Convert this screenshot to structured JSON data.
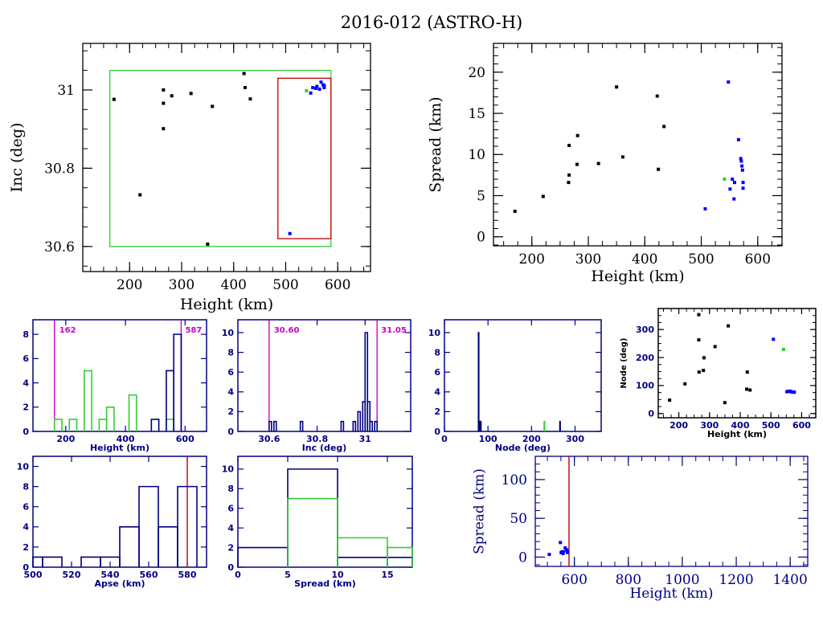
{
  "page": {
    "title": "2016-012 (ASTRO-H)"
  },
  "colors": {
    "black": "#000000",
    "navy": "#000080",
    "blue": "#0000ff",
    "green": "#33cc33",
    "red": "#c00000",
    "magenta": "#cc00cc"
  },
  "chart_data": [
    {
      "id": "inc-vs-height",
      "type": "scatter",
      "title": "",
      "xlabel": "Height (km)",
      "ylabel": "Inc (deg)",
      "xlim": [
        110,
        663
      ],
      "ylim": [
        30.536,
        31.119
      ],
      "xticks": [
        200,
        300,
        400,
        500,
        600
      ],
      "xtick_labels": [
        "200",
        "300",
        "400",
        "500",
        "600"
      ],
      "yticks": [
        30.6,
        30.8,
        31
      ],
      "ytick_labels": [
        "30.6",
        "30.8",
        "31"
      ],
      "xminor": 25,
      "yminor": 0.05,
      "boxes": [
        {
          "name": "green-box",
          "color": "green",
          "x": [
            162,
            587
          ],
          "y": [
            30.6,
            31.05
          ]
        },
        {
          "name": "red-box",
          "color": "red",
          "x": [
            485,
            587
          ],
          "y": [
            30.62,
            31.03
          ]
        }
      ],
      "series": [
        {
          "name": "debris-black",
          "color": "black",
          "points": [
            [
              170,
              30.976
            ],
            [
              265,
              31.0
            ],
            [
              265,
              30.966
            ],
            [
              265,
              30.901
            ],
            [
              281,
              30.985
            ],
            [
              318,
              30.991
            ],
            [
              359,
              30.958
            ],
            [
              420,
              31.042
            ],
            [
              422,
              31.006
            ],
            [
              432,
              30.977
            ],
            [
              220,
              30.732
            ],
            [
              350,
              30.606
            ]
          ]
        },
        {
          "name": "debris-blue",
          "color": "blue",
          "points": [
            [
              548,
              30.992
            ],
            [
              552,
              31.006
            ],
            [
              558,
              31.004
            ],
            [
              560,
              31.009
            ],
            [
              565,
              31.002
            ],
            [
              568,
              31.02
            ],
            [
              572,
              31.013
            ],
            [
              574,
              31.006
            ],
            [
              574,
              31.011
            ],
            [
              508,
              30.633
            ]
          ]
        },
        {
          "name": "parent-green",
          "color": "green",
          "points": [
            [
              540,
              30.998
            ]
          ]
        }
      ]
    },
    {
      "id": "spread-vs-height",
      "type": "scatter",
      "xlabel": "Height (km)",
      "ylabel": "Spread (km)",
      "xlim": [
        132,
        643
      ],
      "ylim": [
        -1.1,
        23.5
      ],
      "xticks": [
        200,
        300,
        400,
        500,
        600
      ],
      "xtick_labels": [
        "200",
        "300",
        "400",
        "500",
        "600"
      ],
      "yticks": [
        0,
        5,
        10,
        15,
        20
      ],
      "ytick_labels": [
        "0",
        "5",
        "10",
        "15",
        "20"
      ],
      "xminor": 25,
      "yminor": 1,
      "series": [
        {
          "name": "debris-black",
          "color": "black",
          "points": [
            [
              170,
              3.1
            ],
            [
              220,
              4.9
            ],
            [
              265,
              6.6
            ],
            [
              266,
              7.5
            ],
            [
              266,
              11.1
            ],
            [
              280,
              8.8
            ],
            [
              281,
              12.3
            ],
            [
              318,
              8.9
            ],
            [
              350,
              18.2
            ],
            [
              361,
              9.7
            ],
            [
              422,
              17.1
            ],
            [
              424,
              8.2
            ],
            [
              434,
              13.4
            ]
          ]
        },
        {
          "name": "debris-blue",
          "color": "blue",
          "points": [
            [
              507,
              3.4
            ],
            [
              548,
              18.8
            ],
            [
              551,
              5.8
            ],
            [
              555,
              7.0
            ],
            [
              558,
              4.6
            ],
            [
              559,
              6.6
            ],
            [
              566,
              11.8
            ],
            [
              570,
              9.5
            ],
            [
              571,
              9.2
            ],
            [
              572,
              8.6
            ],
            [
              573,
              8.1
            ],
            [
              574,
              6.6
            ],
            [
              574,
              5.9
            ]
          ]
        },
        {
          "name": "parent-green",
          "color": "green",
          "points": [
            [
              541,
              7.0
            ]
          ]
        }
      ]
    },
    {
      "id": "height-histogram",
      "type": "bar",
      "xlabel": "Height (km)",
      "ylabel": "",
      "xlim": [
        90,
        672
      ],
      "ylim": [
        0,
        9.2
      ],
      "xticks": [
        200,
        400,
        600
      ],
      "xtick_labels": [
        "200",
        "400",
        "600"
      ],
      "yticks": [
        0,
        2,
        4,
        6,
        8
      ],
      "ytick_labels": [
        "0",
        "2",
        "4",
        "6",
        "8"
      ],
      "markers": [
        {
          "value": 162,
          "label": "162",
          "color": "magenta"
        },
        {
          "value": 587,
          "label": "587",
          "color": "magenta"
        }
      ],
      "bin_width": 25,
      "series": [
        {
          "name": "green-parent-ops",
          "color": "green",
          "bins": [
            [
              162,
              1
            ],
            [
              187,
              0
            ],
            [
              212,
              1
            ],
            [
              237,
              0
            ],
            [
              262,
              5
            ],
            [
              287,
              0
            ],
            [
              312,
              1
            ],
            [
              337,
              2
            ],
            [
              362,
              0
            ],
            [
              387,
              0
            ],
            [
              412,
              3
            ],
            [
              437,
              0
            ],
            [
              462,
              0
            ],
            [
              487,
              0
            ],
            [
              537,
              1
            ]
          ]
        },
        {
          "name": "navy-debris",
          "color": "navy",
          "bins": [
            [
              487,
              1
            ],
            [
              537,
              5
            ],
            [
              562,
              8
            ]
          ]
        }
      ]
    },
    {
      "id": "inc-histogram",
      "type": "bar",
      "xlabel": "Inc (deg)",
      "ylabel": "",
      "xlim": [
        30.47,
        31.19
      ],
      "ylim": [
        0,
        11.3
      ],
      "xticks": [
        30.6,
        30.8,
        31
      ],
      "xtick_labels": [
        "30.6",
        "30.8",
        "31"
      ],
      "yticks": [
        0,
        2,
        4,
        6,
        8,
        10
      ],
      "ytick_labels": [
        "0",
        "2",
        "4",
        "6",
        "8",
        "10"
      ],
      "markers": [
        {
          "value": 30.6,
          "label": "30.60",
          "color": "magenta"
        },
        {
          "value": 31.05,
          "label": "31.05",
          "color": "magenta"
        }
      ],
      "bin_width": 0.01,
      "series": [
        {
          "name": "navy-inc",
          "color": "navy",
          "bins": [
            [
              30.6,
              1
            ],
            [
              30.62,
              1
            ],
            [
              30.73,
              1
            ],
            [
              30.9,
              1
            ],
            [
              30.95,
              1
            ],
            [
              30.97,
              2
            ],
            [
              30.99,
              3
            ],
            [
              31.0,
              10
            ],
            [
              31.01,
              3
            ],
            [
              31.02,
              1
            ],
            [
              31.04,
              1
            ]
          ]
        }
      ]
    },
    {
      "id": "node-histogram",
      "type": "bar",
      "xlabel": "Node (deg)",
      "ylabel": "",
      "xlim": [
        0,
        360
      ],
      "ylim": [
        0,
        11.3
      ],
      "xticks": [
        0,
        100,
        200,
        300
      ],
      "xtick_labels": [
        "0",
        "100",
        "200",
        "300"
      ],
      "yticks": [
        0,
        2,
        4,
        6,
        8,
        10
      ],
      "ytick_labels": [
        "0",
        "2",
        "4",
        "6",
        "8",
        "10"
      ],
      "bin_width": 1,
      "series": [
        {
          "name": "navy-node",
          "color": "navy",
          "bins": [
            [
              78,
              10
            ],
            [
              80,
              1
            ],
            [
              81,
              1
            ],
            [
              82,
              1
            ],
            [
              83,
              1
            ],
            [
              265,
              1
            ]
          ]
        },
        {
          "name": "green-node",
          "color": "green",
          "bins": [
            [
              229,
              1
            ]
          ]
        }
      ]
    },
    {
      "id": "node-vs-height",
      "type": "scatter",
      "xlabel": "Height (km)",
      "ylabel": "Node (deg)",
      "xlim": [
        133,
        646
      ],
      "ylim": [
        -15,
        375
      ],
      "xticks": [
        200,
        300,
        400,
        500,
        600
      ],
      "xtick_labels": [
        "200",
        "300",
        "400",
        "500",
        "600"
      ],
      "yticks": [
        0,
        100,
        200,
        300
      ],
      "ytick_labels": [
        "0",
        "100",
        "200",
        "300"
      ],
      "xminor": 25,
      "yminor": 25,
      "series": [
        {
          "name": "debris-black",
          "color": "black",
          "points": [
            [
              170,
              48
            ],
            [
              220,
              106
            ],
            [
              265,
              353
            ],
            [
              265,
              263
            ],
            [
              266,
              148
            ],
            [
              280,
              154
            ],
            [
              282,
              199
            ],
            [
              318,
              239
            ],
            [
              350,
              39
            ],
            [
              361,
              313
            ],
            [
              421,
              87
            ],
            [
              423,
              148
            ],
            [
              432,
              84
            ]
          ]
        },
        {
          "name": "debris-blue",
          "color": "blue",
          "points": [
            [
              508,
              265
            ],
            [
              552,
              78
            ],
            [
              556,
              79
            ],
            [
              560,
              80
            ],
            [
              564,
              79
            ],
            [
              568,
              77
            ],
            [
              572,
              77
            ],
            [
              576,
              76
            ]
          ]
        },
        {
          "name": "parent-green",
          "color": "green",
          "points": [
            [
              541,
              229
            ]
          ]
        }
      ]
    },
    {
      "id": "apse-histogram",
      "type": "bar",
      "xlabel": "Apse (km)",
      "ylabel": "",
      "xlim": [
        500,
        590
      ],
      "ylim": [
        0,
        11
      ],
      "xticks": [
        500,
        520,
        540,
        560,
        580
      ],
      "xtick_labels": [
        "500",
        "520",
        "540",
        "560",
        "580"
      ],
      "yticks": [
        0,
        2,
        4,
        6,
        8,
        10
      ],
      "ytick_labels": [
        "0",
        "2",
        "4",
        "6",
        "8",
        "10"
      ],
      "markers": [
        {
          "value": 580,
          "label": "",
          "color": "red"
        }
      ],
      "bin_width": 10,
      "series": [
        {
          "name": "navy-apse",
          "color": "navy",
          "bins": [
            [
              495,
              1
            ],
            [
              505,
              1
            ],
            [
              515,
              0
            ],
            [
              525,
              1
            ],
            [
              535,
              1
            ],
            [
              545,
              4
            ],
            [
              555,
              8
            ],
            [
              565,
              4
            ],
            [
              575,
              8
            ]
          ]
        }
      ]
    },
    {
      "id": "spread-histogram",
      "type": "bar",
      "xlabel": "Spread (km)",
      "ylabel": "",
      "xlim": [
        0,
        17.5
      ],
      "ylim": [
        0,
        11.3
      ],
      "xticks": [
        0,
        5,
        10,
        15
      ],
      "xtick_labels": [
        "0",
        "5",
        "10",
        "15"
      ],
      "yticks": [
        0,
        2,
        4,
        6,
        8,
        10
      ],
      "ytick_labels": [
        "0",
        "2",
        "4",
        "6",
        "8",
        "10"
      ],
      "bin_width": 5,
      "series": [
        {
          "name": "navy-spread",
          "color": "navy",
          "bins": [
            [
              0,
              2
            ],
            [
              5,
              10
            ],
            [
              10,
              1
            ],
            [
              15,
              1
            ]
          ]
        },
        {
          "name": "green-spread",
          "color": "green",
          "bins": [
            [
              5,
              7
            ],
            [
              10,
              3
            ],
            [
              15,
              2
            ]
          ]
        }
      ]
    },
    {
      "id": "spread-vs-height-wide",
      "type": "scatter",
      "xlabel": "Height (km)",
      "ylabel": "Spread (km)",
      "xlim": [
        455,
        1465
      ],
      "ylim": [
        -12,
        130
      ],
      "xticks": [
        600,
        800,
        1000,
        1200,
        1400
      ],
      "xtick_labels": [
        "600",
        "800",
        "1000",
        "1200",
        "1400"
      ],
      "yticks": [
        0,
        50,
        100
      ],
      "ytick_labels": [
        "0",
        "50",
        "100"
      ],
      "xminor": 50,
      "yminor": 10,
      "markers": [
        {
          "value": 580,
          "label": "",
          "color": "red"
        }
      ],
      "series": [
        {
          "name": "debris-blue",
          "color": "blue",
          "points": [
            [
              507,
              3.4
            ],
            [
              548,
              18.8
            ],
            [
              551,
              5.8
            ],
            [
              555,
              7.0
            ],
            [
              558,
              4.6
            ],
            [
              559,
              6.6
            ],
            [
              566,
              11.8
            ],
            [
              570,
              9.5
            ],
            [
              572,
              8.6
            ],
            [
              574,
              6.6
            ],
            [
              574,
              5.9
            ]
          ]
        }
      ]
    }
  ]
}
